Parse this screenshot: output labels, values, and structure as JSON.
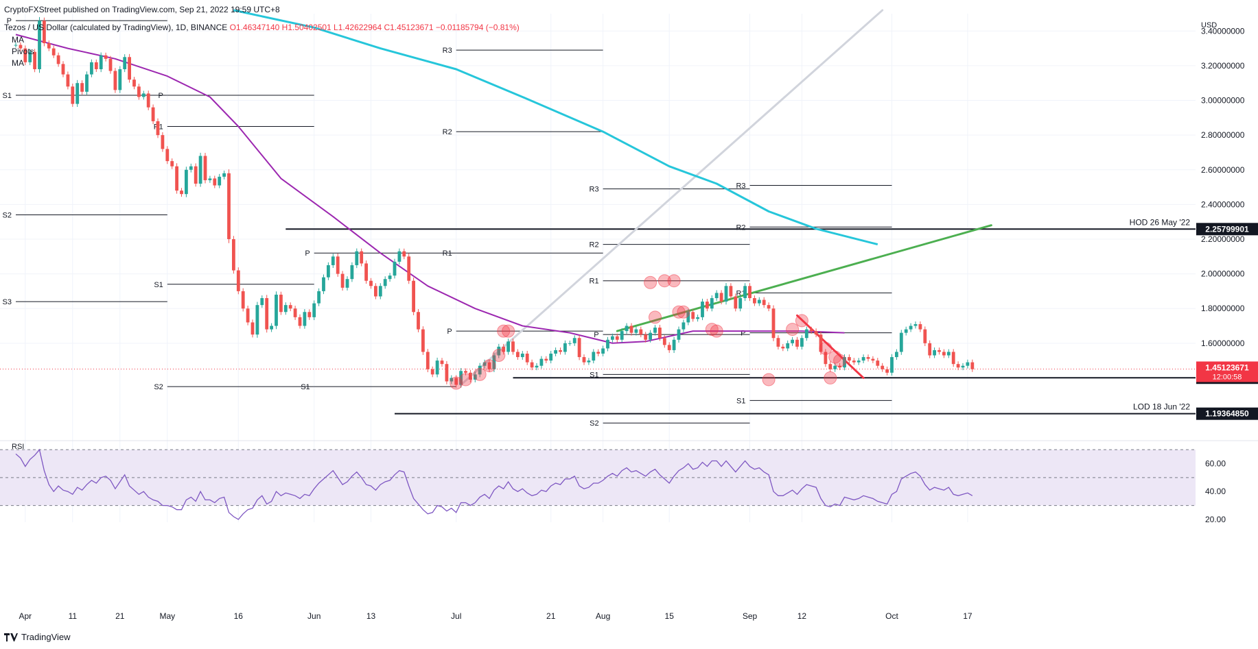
{
  "header": {
    "publisher": "CryptoFXStreet published on TradingView.com, Sep 21, 2022 19:59 UTC+8",
    "symbol": "Tezos / US Dollar (calculated by TradingView), 1D, BINANCE",
    "ohlc": "O1.46347140 H1.50402501 L1.42622964 C1.45123671 −0.01185794 (−0.81%)"
  },
  "indicator_labels": [
    "MA",
    "Pivots",
    "MA"
  ],
  "footer": {
    "brand": "TradingView"
  },
  "colors": {
    "bull": "#26a69a",
    "bear": "#f05350",
    "ma_fast": "#9c27b0",
    "ma_slow": "#26c6da",
    "trend_green": "#4caf50",
    "trend_red": "#f23645",
    "trend_grey": "#d1d4dc",
    "rsi": "#7e57c2",
    "rsi_band": "#ede7f6"
  },
  "chart_data": {
    "type": "candlestick",
    "currency": "USD",
    "ylim": [
      1.05,
      3.5
    ],
    "y_ticks": [
      "3.40000000",
      "3.20000000",
      "3.00000000",
      "2.80000000",
      "2.60000000",
      "2.40000000",
      "2.20000000",
      "2.00000000",
      "1.80000000",
      "1.60000000"
    ],
    "y_tick_values": [
      3.4,
      3.2,
      3.0,
      2.8,
      2.6,
      2.4,
      2.2,
      2.0,
      1.8,
      1.6
    ],
    "x_ticks": [
      "Apr",
      "11",
      "21",
      "May",
      "16",
      "Jun",
      "13",
      "Jul",
      "21",
      "Aug",
      "15",
      "Sep",
      "12",
      "Oct",
      "17"
    ],
    "x_tick_dates": [
      "2022-04-01",
      "2022-04-11",
      "2022-04-21",
      "2022-05-01",
      "2022-05-16",
      "2022-06-01",
      "2022-06-13",
      "2022-07-01",
      "2022-07-21",
      "2022-08-01",
      "2022-08-15",
      "2022-09-01",
      "2022-09-12",
      "2022-10-01",
      "2022-10-17"
    ],
    "start_date": "2022-03-30",
    "closes": [
      3.32,
      3.3,
      3.22,
      3.28,
      3.18,
      3.46,
      3.33,
      3.3,
      3.26,
      3.21,
      3.15,
      3.08,
      2.98,
      3.1,
      3.05,
      3.15,
      3.22,
      3.18,
      3.26,
      3.24,
      3.17,
      3.06,
      3.18,
      3.25,
      3.12,
      3.08,
      3.02,
      3.04,
      2.96,
      2.88,
      2.8,
      2.72,
      2.65,
      2.62,
      2.48,
      2.46,
      2.6,
      2.62,
      2.52,
      2.68,
      2.54,
      2.55,
      2.51,
      2.56,
      2.58,
      2.2,
      2.02,
      1.9,
      1.8,
      1.72,
      1.65,
      1.82,
      1.86,
      1.68,
      1.7,
      1.88,
      1.78,
      1.82,
      1.8,
      1.75,
      1.7,
      1.78,
      1.75,
      1.83,
      1.9,
      1.98,
      2.05,
      2.1,
      2.0,
      1.92,
      1.97,
      2.05,
      2.13,
      2.06,
      1.96,
      1.93,
      1.87,
      1.93,
      1.97,
      1.99,
      2.07,
      2.13,
      2.1,
      1.96,
      1.78,
      1.68,
      1.55,
      1.45,
      1.42,
      1.5,
      1.48,
      1.38,
      1.4,
      1.36,
      1.44,
      1.43,
      1.39,
      1.42,
      1.47,
      1.49,
      1.45,
      1.53,
      1.58,
      1.55,
      1.61,
      1.55,
      1.52,
      1.54,
      1.49,
      1.46,
      1.47,
      1.51,
      1.5,
      1.54,
      1.56,
      1.55,
      1.6,
      1.6,
      1.63,
      1.52,
      1.49,
      1.5,
      1.55,
      1.54,
      1.57,
      1.62,
      1.64,
      1.62,
      1.67,
      1.7,
      1.66,
      1.68,
      1.65,
      1.62,
      1.66,
      1.69,
      1.63,
      1.59,
      1.56,
      1.62,
      1.68,
      1.72,
      1.78,
      1.74,
      1.75,
      1.84,
      1.8,
      1.86,
      1.89,
      1.84,
      1.93,
      1.87,
      1.8,
      1.86,
      1.93,
      1.86,
      1.83,
      1.85,
      1.82,
      1.8,
      1.63,
      1.58,
      1.57,
      1.6,
      1.62,
      1.58,
      1.63,
      1.68,
      1.67,
      1.65,
      1.55,
      1.48,
      1.45,
      1.47,
      1.46,
      1.52,
      1.5,
      1.49,
      1.5,
      1.52,
      1.51,
      1.5,
      1.47,
      1.45,
      1.43,
      1.52,
      1.55,
      1.66,
      1.68,
      1.7,
      1.71,
      1.68,
      1.6,
      1.53,
      1.56,
      1.55,
      1.53,
      1.55,
      1.48,
      1.46,
      1.47,
      1.49,
      1.45
    ],
    "series": [
      {
        "name": "MA",
        "color": "#9c27b0",
        "points": [
          [
            "2022-03-30",
            3.38
          ],
          [
            "2022-04-10",
            3.3
          ],
          [
            "2022-04-20",
            3.24
          ],
          [
            "2022-05-01",
            3.14
          ],
          [
            "2022-05-10",
            3.02
          ],
          [
            "2022-05-16",
            2.85
          ],
          [
            "2022-05-25",
            2.55
          ],
          [
            "2022-06-05",
            2.33
          ],
          [
            "2022-06-15",
            2.12
          ],
          [
            "2022-06-25",
            1.93
          ],
          [
            "2022-07-05",
            1.8
          ],
          [
            "2022-07-15",
            1.7
          ],
          [
            "2022-07-25",
            1.66
          ],
          [
            "2022-08-03",
            1.6
          ],
          [
            "2022-08-10",
            1.61
          ],
          [
            "2022-08-20",
            1.67
          ],
          [
            "2022-09-01",
            1.67
          ],
          [
            "2022-09-12",
            1.67
          ],
          [
            "2022-09-21",
            1.66
          ]
        ]
      },
      {
        "name": "MA",
        "color": "#26c6da",
        "points": [
          [
            "2022-05-15",
            3.52
          ],
          [
            "2022-06-01",
            3.42
          ],
          [
            "2022-06-15",
            3.3
          ],
          [
            "2022-07-01",
            3.18
          ],
          [
            "2022-07-15",
            3.02
          ],
          [
            "2022-08-01",
            2.82
          ],
          [
            "2022-08-15",
            2.62
          ],
          [
            "2022-08-25",
            2.52
          ],
          [
            "2022-09-05",
            2.36
          ],
          [
            "2022-09-15",
            2.26
          ],
          [
            "2022-09-28",
            2.17
          ]
        ]
      }
    ],
    "trendlines": [
      {
        "color": "#d1d4dc",
        "from": [
          "2022-07-02",
          1.36
        ],
        "to": [
          "2022-09-29",
          3.52
        ]
      },
      {
        "color": "#4caf50",
        "from": [
          "2022-08-04",
          1.67
        ],
        "to": [
          "2022-10-22",
          2.28
        ]
      },
      {
        "color": "#f23645",
        "from": [
          "2022-09-11",
          1.76
        ],
        "to": [
          "2022-09-25",
          1.4
        ]
      }
    ],
    "pivot_lines": [
      {
        "label": "P",
        "y": 3.46,
        "from": "2022-03-30",
        "to": "2022-05-01"
      },
      {
        "label": "S1",
        "y": 3.03,
        "from": "2022-03-30",
        "to": "2022-05-01"
      },
      {
        "label": "S2",
        "y": 2.34,
        "from": "2022-03-30",
        "to": "2022-05-01"
      },
      {
        "label": "S3",
        "y": 1.84,
        "from": "2022-03-30",
        "to": "2022-05-01"
      },
      {
        "label": "P",
        "y": 3.03,
        "from": "2022-05-01",
        "to": "2022-06-01"
      },
      {
        "label": "R1",
        "y": 2.85,
        "from": "2022-05-01",
        "to": "2022-06-01"
      },
      {
        "label": "S1",
        "y": 1.94,
        "from": "2022-05-01",
        "to": "2022-06-01"
      },
      {
        "label": "S2",
        "y": 1.35,
        "from": "2022-05-01",
        "to": "2022-06-01"
      },
      {
        "label": "P",
        "y": 2.12,
        "from": "2022-06-01",
        "to": "2022-07-01"
      },
      {
        "label": "S1",
        "y": 1.35,
        "from": "2022-06-01",
        "to": "2022-07-01"
      },
      {
        "label": "R3",
        "y": 3.29,
        "from": "2022-07-01",
        "to": "2022-08-01"
      },
      {
        "label": "R2",
        "y": 2.82,
        "from": "2022-07-01",
        "to": "2022-08-01"
      },
      {
        "label": "R1",
        "y": 2.12,
        "from": "2022-07-01",
        "to": "2022-08-01"
      },
      {
        "label": "P",
        "y": 1.67,
        "from": "2022-07-01",
        "to": "2022-08-01"
      },
      {
        "label": "R3",
        "y": 2.49,
        "from": "2022-08-01",
        "to": "2022-09-01"
      },
      {
        "label": "R2",
        "y": 2.17,
        "from": "2022-08-01",
        "to": "2022-09-01"
      },
      {
        "label": "R1",
        "y": 1.96,
        "from": "2022-08-01",
        "to": "2022-09-01"
      },
      {
        "label": "P",
        "y": 1.65,
        "from": "2022-08-01",
        "to": "2022-09-01"
      },
      {
        "label": "S1",
        "y": 1.42,
        "from": "2022-08-01",
        "to": "2022-09-01"
      },
      {
        "label": "S2",
        "y": 1.14,
        "from": "2022-08-01",
        "to": "2022-09-01"
      },
      {
        "label": "R3",
        "y": 2.51,
        "from": "2022-09-01",
        "to": "2022-10-01"
      },
      {
        "label": "R2",
        "y": 2.27,
        "from": "2022-09-01",
        "to": "2022-10-01"
      },
      {
        "label": "R1",
        "y": 1.89,
        "from": "2022-09-01",
        "to": "2022-10-01"
      },
      {
        "label": "P",
        "y": 1.66,
        "from": "2022-09-01",
        "to": "2022-10-01"
      },
      {
        "label": "S1",
        "y": 1.27,
        "from": "2022-09-01",
        "to": "2022-10-01"
      }
    ],
    "horizontal_levels": [
      {
        "label": "HOD 26 May '22",
        "value": "2.25799901",
        "y": 2.258,
        "from": "2022-05-26"
      },
      {
        "label": "",
        "value": "1.40080076",
        "y": 1.4008,
        "from": "2022-07-13"
      },
      {
        "label": "LOD 18 Jun '22",
        "value": "1.19364850",
        "y": 1.1936,
        "from": "2022-06-18"
      }
    ],
    "last_price": {
      "value": "1.45123671",
      "countdown": "12:00:58",
      "y": 1.4512
    },
    "highlight_circles": [
      [
        "2022-07-01",
        1.37
      ],
      [
        "2022-07-03",
        1.39
      ],
      [
        "2022-07-06",
        1.42
      ],
      [
        "2022-07-08",
        1.47
      ],
      [
        "2022-07-10",
        1.53
      ],
      [
        "2022-07-11",
        1.67
      ],
      [
        "2022-07-12",
        1.67
      ],
      [
        "2022-08-11",
        1.95
      ],
      [
        "2022-08-12",
        1.75
      ],
      [
        "2022-08-14",
        1.96
      ],
      [
        "2022-08-16",
        1.96
      ],
      [
        "2022-08-17",
        1.78
      ],
      [
        "2022-08-18",
        1.78
      ],
      [
        "2022-08-24",
        1.68
      ],
      [
        "2022-08-25",
        1.67
      ],
      [
        "2022-09-05",
        1.39
      ],
      [
        "2022-09-10",
        1.68
      ],
      [
        "2022-09-12",
        1.73
      ],
      [
        "2022-09-17",
        1.57
      ],
      [
        "2022-09-18",
        1.4
      ],
      [
        "2022-09-19",
        1.52
      ],
      [
        "2022-09-20",
        1.5
      ]
    ],
    "rsi": {
      "label": "RSI",
      "ylim": [
        18,
        75
      ],
      "y_ticks": [
        "60.00",
        "40.00",
        "20.00"
      ],
      "y_tick_values": [
        60,
        40,
        20
      ],
      "band": [
        30,
        70
      ],
      "mid": 50,
      "values": [
        67,
        64,
        58,
        63,
        66,
        70,
        55,
        45,
        40,
        44,
        41,
        40,
        38,
        43,
        41,
        45,
        48,
        46,
        50,
        51,
        48,
        42,
        47,
        52,
        44,
        41,
        38,
        40,
        36,
        34,
        33,
        30,
        30,
        29,
        27,
        27,
        34,
        36,
        33,
        40,
        34,
        34,
        32,
        35,
        36,
        25,
        22,
        20,
        24,
        27,
        28,
        34,
        37,
        31,
        33,
        40,
        37,
        39,
        38,
        37,
        35,
        38,
        37,
        42,
        46,
        49,
        52,
        55,
        50,
        45,
        47,
        51,
        54,
        50,
        45,
        44,
        41,
        45,
        47,
        48,
        52,
        55,
        54,
        44,
        35,
        31,
        27,
        24,
        25,
        30,
        29,
        26,
        28,
        25,
        32,
        32,
        30,
        32,
        36,
        38,
        35,
        41,
        44,
        42,
        47,
        42,
        40,
        42,
        39,
        37,
        38,
        41,
        40,
        44,
        46,
        45,
        49,
        49,
        51,
        44,
        42,
        43,
        46,
        46,
        48,
        51,
        53,
        51,
        55,
        57,
        54,
        55,
        53,
        51,
        54,
        56,
        52,
        49,
        46,
        51,
        55,
        57,
        60,
        56,
        57,
        61,
        58,
        62,
        62,
        58,
        62,
        58,
        54,
        58,
        62,
        58,
        56,
        57,
        54,
        52,
        40,
        37,
        37,
        39,
        41,
        38,
        42,
        45,
        44,
        43,
        35,
        30,
        29,
        31,
        30,
        36,
        35,
        34,
        35,
        37,
        36,
        35,
        33,
        32,
        31,
        38,
        40,
        49,
        51,
        53,
        54,
        51,
        45,
        41,
        43,
        42,
        41,
        43,
        38,
        37,
        38,
        39,
        37
      ]
    }
  }
}
